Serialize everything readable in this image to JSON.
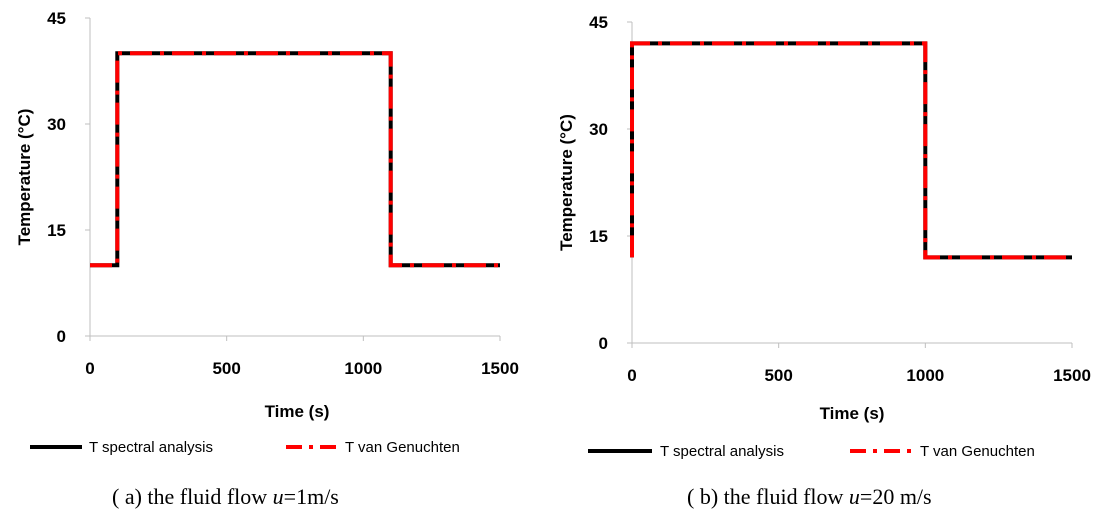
{
  "chart_data": [
    {
      "type": "line",
      "xlabel": "Time (s)",
      "ylabel": "Temperature (°C)",
      "xlim": [
        0,
        1500
      ],
      "ylim": [
        0,
        45
      ],
      "xticks": [
        0,
        500,
        1000,
        1500
      ],
      "yticks": [
        0,
        15,
        30,
        45
      ],
      "xtick_labels": [
        "0",
        "500",
        "1000",
        "1500"
      ],
      "ytick_labels": [
        "0",
        "15",
        "30",
        "45"
      ],
      "grid": false,
      "legend_position": "bottom",
      "series": [
        {
          "name": "T spectral analysis",
          "color": "#000000",
          "style": "solid",
          "x": [
            0,
            100,
            100,
            1100,
            1100,
            1500
          ],
          "y": [
            10,
            10,
            40,
            40,
            10,
            10
          ]
        },
        {
          "name": "T van Genuchten",
          "color": "#ff0000",
          "style": "dash-dot",
          "x": [
            0,
            100,
            100,
            1100,
            1100,
            1500
          ],
          "y": [
            10,
            10,
            40,
            40,
            10,
            10
          ]
        }
      ],
      "caption_prefix": "( a) the fluid flow ",
      "caption_var": "u",
      "caption_suffix": "=1m/s"
    },
    {
      "type": "line",
      "xlabel": "Time (s)",
      "ylabel": "Temperature (°C)",
      "xlim": [
        0,
        1500
      ],
      "ylim": [
        0,
        45
      ],
      "xticks": [
        0,
        500,
        1000,
        1500
      ],
      "yticks": [
        0,
        15,
        30,
        45
      ],
      "xtick_labels": [
        "0",
        "500",
        "1000",
        "1500"
      ],
      "ytick_labels": [
        "0",
        "15",
        "30",
        "45"
      ],
      "grid": false,
      "legend_position": "bottom",
      "series": [
        {
          "name": "T spectral analysis",
          "color": "#000000",
          "style": "solid",
          "x": [
            0,
            0,
            1000,
            1000,
            1500
          ],
          "y": [
            12,
            42,
            42,
            12,
            12
          ]
        },
        {
          "name": "T van Genuchten",
          "color": "#ff0000",
          "style": "dash-dot",
          "x": [
            0,
            0,
            1000,
            1000,
            1500
          ],
          "y": [
            12,
            42,
            42,
            12,
            12
          ]
        }
      ],
      "caption_prefix": "( b) the fluid flow ",
      "caption_var": "u",
      "caption_suffix": "=20 m/s"
    }
  ]
}
